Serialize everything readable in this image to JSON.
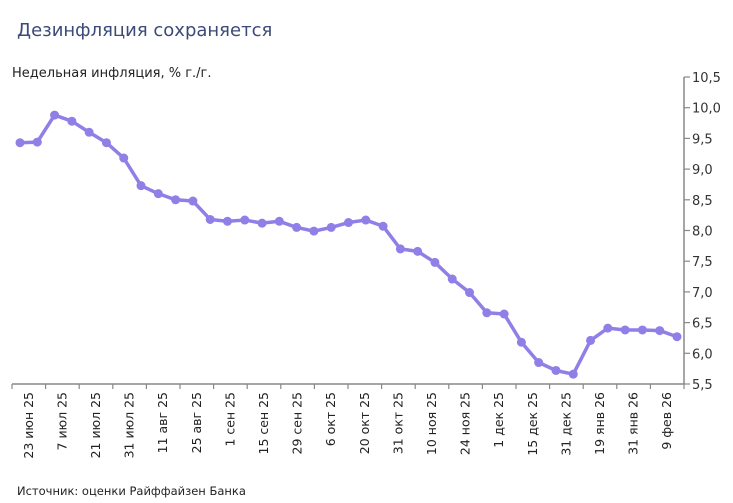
{
  "title": "Дезинфляция сохраняется",
  "source": "Источник: оценки Райффайзен Банка",
  "chart_data": {
    "type": "line",
    "title": "Дезинфляция сохраняется",
    "ylabel": "Недельная инфляция, % г./г.",
    "xlabel": "",
    "ylim": [
      5.5,
      10.5
    ],
    "yticks": [
      "5,5",
      "6,0",
      "6,5",
      "7,0",
      "7,5",
      "8,0",
      "8,5",
      "9,0",
      "9,5",
      "10,0",
      "10,5"
    ],
    "y_axis_position": "right",
    "grid": false,
    "legend": "none",
    "color": "#8f7fe6",
    "x_tick_labels": [
      "23 июн 25",
      "7 июл 25",
      "21 июл 25",
      "31 июл 25",
      "11 авг 25",
      "25 авг 25",
      "1 сен 25",
      "15 сен 25",
      "29 сен 25",
      "6 окт 25",
      "20 окт 25",
      "31 окт 25",
      "10 ноя 25",
      "24 ноя 25",
      "1 дек 25",
      "15 дек 25",
      "31 дек 25",
      "19 янв 26",
      "31 янв 26",
      "9 фев 26"
    ],
    "values": [
      9.43,
      9.44,
      9.88,
      9.78,
      9.6,
      9.43,
      9.18,
      8.73,
      8.6,
      8.5,
      8.48,
      8.18,
      8.15,
      8.17,
      8.12,
      8.15,
      8.05,
      7.99,
      8.05,
      8.13,
      8.17,
      8.07,
      7.7,
      7.66,
      7.48,
      7.21,
      6.99,
      6.66,
      6.64,
      6.18,
      5.85,
      5.72,
      5.66,
      6.21,
      6.41,
      6.38,
      6.38,
      6.37,
      6.27
    ]
  }
}
